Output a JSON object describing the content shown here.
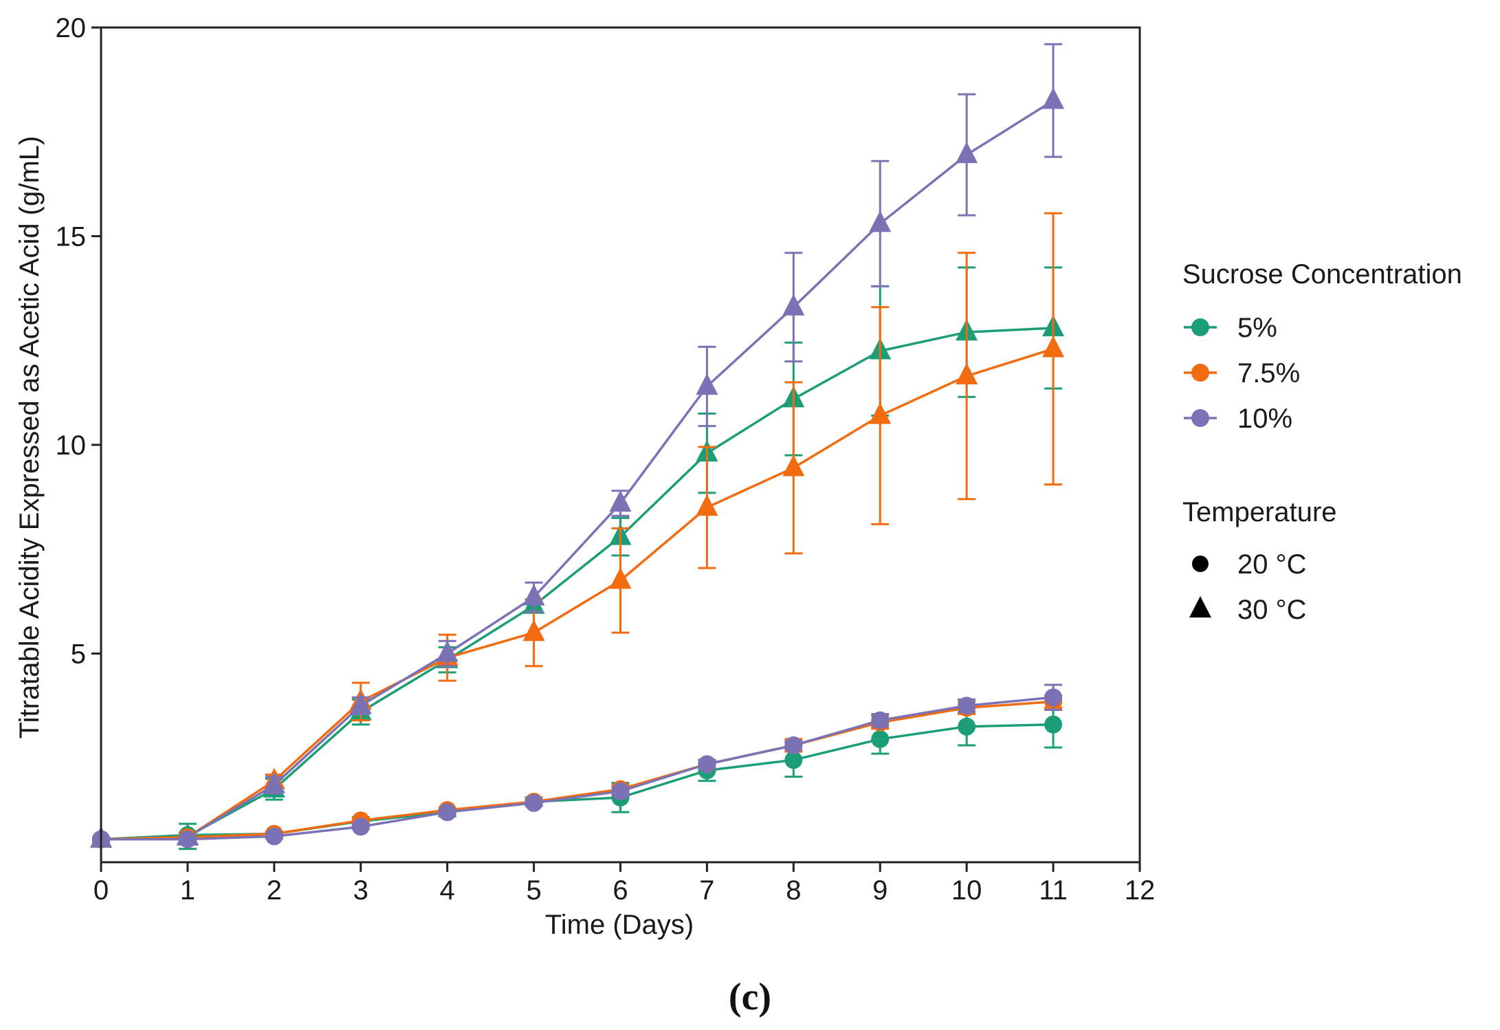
{
  "chart_data": {
    "type": "line",
    "title": "",
    "xlabel": "Time (Days)",
    "ylabel": "Titratable Acidity Expressed as Acetic Acid (g/mL)",
    "xlim": [
      0,
      12
    ],
    "ylim": [
      0,
      20
    ],
    "x_ticks": [
      0,
      1,
      2,
      3,
      4,
      5,
      6,
      7,
      8,
      9,
      10,
      11,
      12
    ],
    "y_ticks": [
      5,
      10,
      15,
      20
    ],
    "grid": false,
    "legend_position": "right",
    "x": [
      0,
      1,
      2,
      3,
      4,
      5,
      6,
      7,
      8,
      9,
      10,
      11
    ],
    "panel_label": "(c)",
    "legend": {
      "color_title": "Sucrose Concentration",
      "color_entries": [
        {
          "label": "5%",
          "color": "#1b9e77"
        },
        {
          "label": "7.5%",
          "color": "#f26b0f"
        },
        {
          "label": "10%",
          "color": "#7b72b5"
        }
      ],
      "shape_title": "Temperature",
      "shape_entries": [
        {
          "label": "20 °C",
          "shape": "circle"
        },
        {
          "label": "30 °C",
          "shape": "triangle"
        }
      ]
    },
    "series": [
      {
        "name": "5% 20 °C",
        "concentration": "5%",
        "temperature": "20 °C",
        "color": "#1b9e77",
        "marker": "circle",
        "values": [
          0.55,
          0.65,
          0.68,
          0.98,
          1.2,
          1.45,
          1.55,
          2.2,
          2.45,
          2.95,
          3.25,
          3.3
        ],
        "errors": [
          0.05,
          0.05,
          0.05,
          0.1,
          0.1,
          0.1,
          0.35,
          0.25,
          0.4,
          0.35,
          0.45,
          0.55
        ]
      },
      {
        "name": "7.5% 20 °C",
        "concentration": "7.5%",
        "temperature": "20 °C",
        "color": "#f26b0f",
        "marker": "circle",
        "values": [
          0.55,
          0.6,
          0.68,
          1.0,
          1.25,
          1.45,
          1.75,
          2.35,
          2.8,
          3.35,
          3.7,
          3.85
        ],
        "errors": [
          0.05,
          0.05,
          0.05,
          0.05,
          0.05,
          0.05,
          0.1,
          0.1,
          0.15,
          0.15,
          0.15,
          0.15
        ]
      },
      {
        "name": "10% 20 °C",
        "concentration": "10%",
        "temperature": "20 °C",
        "color": "#7b72b5",
        "marker": "circle",
        "values": [
          0.55,
          0.55,
          0.62,
          0.85,
          1.2,
          1.42,
          1.7,
          2.35,
          2.8,
          3.4,
          3.75,
          3.95
        ],
        "errors": [
          0.05,
          0.05,
          0.05,
          0.05,
          0.05,
          0.05,
          0.1,
          0.1,
          0.1,
          0.15,
          0.15,
          0.3
        ]
      },
      {
        "name": "5% 30 °C",
        "concentration": "5%",
        "temperature": "30 °C",
        "color": "#1b9e77",
        "marker": "triangle",
        "values": [
          0.55,
          0.62,
          1.75,
          3.6,
          4.85,
          6.15,
          7.8,
          9.8,
          11.1,
          12.25,
          12.7,
          12.8
        ],
        "errors": [
          0.05,
          0.3,
          0.25,
          0.3,
          0.3,
          0.15,
          0.45,
          0.95,
          1.35,
          1.55,
          1.55,
          1.45
        ]
      },
      {
        "name": "7.5% 30 °C",
        "concentration": "7.5%",
        "temperature": "30 °C",
        "color": "#f26b0f",
        "marker": "triangle",
        "values": [
          0.55,
          0.6,
          1.95,
          3.85,
          4.9,
          5.5,
          6.75,
          8.5,
          9.45,
          10.7,
          11.65,
          12.3
        ],
        "errors": [
          0.05,
          0.1,
          0.15,
          0.45,
          0.55,
          0.8,
          1.25,
          1.45,
          2.05,
          2.6,
          2.95,
          3.25
        ]
      },
      {
        "name": "10% 30 °C",
        "concentration": "10%",
        "temperature": "30 °C",
        "color": "#7b72b5",
        "marker": "triangle",
        "values": [
          0.55,
          0.6,
          1.85,
          3.75,
          5.0,
          6.35,
          8.6,
          11.4,
          13.3,
          15.3,
          16.95,
          18.25
        ],
        "errors": [
          0.05,
          0.1,
          0.2,
          0.2,
          0.3,
          0.35,
          0.3,
          0.95,
          1.3,
          1.5,
          1.45,
          1.35
        ]
      }
    ]
  }
}
